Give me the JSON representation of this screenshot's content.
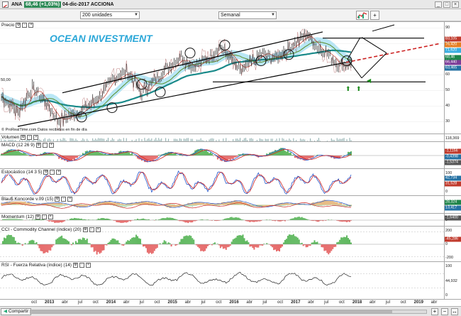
{
  "window": {
    "symbol": "ANA",
    "price_badge": "68,46 (+1,03%)",
    "date_title": "04-dic-2017 ACCIONA",
    "controls": [
      "_",
      "□",
      "×"
    ]
  },
  "toolbar": {
    "units": "200 unidades",
    "period": "Semanal"
  },
  "price_pane": {
    "title": "Precio",
    "watermark": "OCEAN INVESTMENT",
    "footer": "© ProRealTime.com Datos recibidos en fin de día",
    "left_value": "50,00",
    "yticks": [
      "90",
      "80",
      "70",
      "60",
      "50",
      "40",
      "30"
    ],
    "tags": [
      {
        "text": "83,105",
        "color": "#c0392b"
      },
      {
        "text": "76,420",
        "color": "#e67e22"
      },
      {
        "text": "71,620",
        "color": "#3aaee0"
      },
      {
        "text": "68,46",
        "color": "#1e8449"
      },
      {
        "text": "66,440",
        "color": "#7d3c98"
      },
      {
        "text": "63,465",
        "color": "#2471a3"
      }
    ]
  },
  "panes": [
    {
      "title": "Volumen",
      "ticks": [
        "118,369"
      ],
      "tags": []
    },
    {
      "title": "MACD (12 26 9)",
      "ticks": [],
      "tags": [
        {
          "text": "-1,1156",
          "color": "#c0392b"
        },
        {
          "text": "-0,4398",
          "color": "#2471a3"
        },
        {
          "text": "-1,5374",
          "color": "#555555"
        }
      ]
    },
    {
      "title": "Estocástico (14 3 5)",
      "ticks": [
        "100",
        "0"
      ],
      "tags": [
        {
          "text": "42,734",
          "color": "#2471a3"
        },
        {
          "text": "31,528",
          "color": "#c0392b"
        }
      ]
    },
    {
      "title": "Blau$ Koncorde v.09 (15)",
      "ticks": [
        "0"
      ],
      "tags": [
        {
          "text": "28,324",
          "color": "#1e8449"
        },
        {
          "text": "13,417",
          "color": "#2471a3"
        }
      ]
    },
    {
      "title": "Momentum (12)",
      "ticks": [
        "0"
      ],
      "tags": [
        {
          "text": "-1,6400",
          "color": "#555555"
        }
      ]
    },
    {
      "title": "CCI - Commodity Channel (índice) (20)",
      "ticks": [
        "200",
        "0",
        "-200"
      ],
      "tags": [
        {
          "text": "-45,286",
          "color": "#c0392b"
        }
      ]
    },
    {
      "title": "RSI - Fuerza Relativa (índice) (14)",
      "ticks": [
        "100",
        "44,932",
        "0"
      ],
      "tags": []
    }
  ],
  "xaxis": {
    "labels": [
      {
        "text": "oct",
        "year": false
      },
      {
        "text": "2013",
        "year": true
      },
      {
        "text": "abr",
        "year": false
      },
      {
        "text": "jul",
        "year": false
      },
      {
        "text": "oct",
        "year": false
      },
      {
        "text": "2014",
        "year": true
      },
      {
        "text": "abr",
        "year": false
      },
      {
        "text": "jul",
        "year": false
      },
      {
        "text": "oct",
        "year": false
      },
      {
        "text": "2015",
        "year": true
      },
      {
        "text": "abr",
        "year": false
      },
      {
        "text": "jul",
        "year": false
      },
      {
        "text": "oct",
        "year": false
      },
      {
        "text": "2016",
        "year": true
      },
      {
        "text": "abr",
        "year": false
      },
      {
        "text": "jul",
        "year": false
      },
      {
        "text": "oct",
        "year": false
      },
      {
        "text": "2017",
        "year": true
      },
      {
        "text": "abr",
        "year": false
      },
      {
        "text": "jul",
        "year": false
      },
      {
        "text": "oct",
        "year": false
      },
      {
        "text": "2018",
        "year": true
      },
      {
        "text": "abr",
        "year": false
      },
      {
        "text": "jul",
        "year": false
      },
      {
        "text": "oct",
        "year": false
      },
      {
        "text": "2019",
        "year": true
      },
      {
        "text": "abr",
        "year": false
      }
    ]
  },
  "statusbar": {
    "share_label": "Compartir"
  },
  "colors": {
    "price": "#222222",
    "trendline": "#000000",
    "projection": "#cc2222",
    "cloud": "#7fd3ee",
    "ma_long": "#1a8a8a",
    "ma_mid": "#c0392b",
    "ma_short": "#5a8f29",
    "positive_fill": "#5fb85f",
    "negative_fill": "#e66a6a",
    "oscillator_blue": "#2255cc",
    "oscillator_red": "#cc2222",
    "arrows": "#1a8a1a"
  }
}
